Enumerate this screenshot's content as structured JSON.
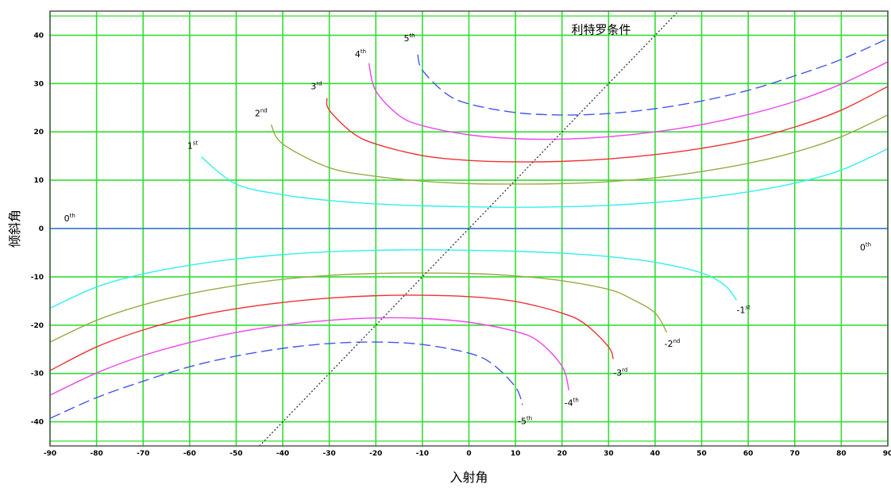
{
  "chart_data": {
    "type": "line",
    "title": "",
    "xlabel": "入射角",
    "ylabel": "倾斜角",
    "xlim": [
      -90,
      90
    ],
    "ylim": [
      -45,
      45
    ],
    "x_ticks": [
      -90,
      -80,
      -70,
      -60,
      -50,
      -40,
      -30,
      -20,
      -10,
      0,
      10,
      20,
      30,
      40,
      50,
      60,
      70,
      80,
      90
    ],
    "y_ticks": [
      -40,
      -30,
      -20,
      -10,
      0,
      10,
      20,
      30,
      40
    ],
    "grid": true,
    "colors": {
      "grid": "#33dd33",
      "frame": "#555555",
      "order0": "#3355ff",
      "order1": "#33eeee",
      "order2": "#99aa44",
      "order3": "#ee3333",
      "order4": "#ee44ee",
      "order5": "#4455ee",
      "littrow": "#333333"
    },
    "series": [
      {
        "name": "0th",
        "color_key": "order0",
        "dash": false,
        "x": [
          -90,
          90
        ],
        "y": [
          0,
          0
        ]
      },
      {
        "name": "1st",
        "color_key": "order1",
        "dash": false,
        "x": [
          -57.5,
          -50,
          -40,
          -30,
          -20,
          -10,
          0,
          10,
          20,
          30,
          40,
          50,
          60,
          70,
          80,
          90
        ],
        "y": [
          14.8,
          9.2,
          7.0,
          5.8,
          5.1,
          4.7,
          4.5,
          4.4,
          4.5,
          4.8,
          5.4,
          6.3,
          7.6,
          9.4,
          12.1,
          16.5
        ]
      },
      {
        "name": "2nd",
        "color_key": "order2",
        "dash": false,
        "x": [
          -42.5,
          -40,
          -30,
          -20,
          -10,
          0,
          10,
          20,
          30,
          40,
          50,
          60,
          70,
          80,
          90
        ],
        "y": [
          21.5,
          17.5,
          12.6,
          10.8,
          9.8,
          9.3,
          9.2,
          9.3,
          9.7,
          10.5,
          11.8,
          13.5,
          15.8,
          19.0,
          23.5
        ]
      },
      {
        "name": "3rd",
        "color_key": "order3",
        "dash": false,
        "x": [
          -30.5,
          -30,
          -25,
          -20,
          -10,
          0,
          10,
          20,
          30,
          40,
          50,
          60,
          70,
          80,
          90
        ],
        "y": [
          27.0,
          24.5,
          19.8,
          17.5,
          15.1,
          14.1,
          13.8,
          13.9,
          14.4,
          15.3,
          16.6,
          18.4,
          21.0,
          24.5,
          29.4
        ]
      },
      {
        "name": "4th",
        "color_key": "order4",
        "dash": false,
        "x": [
          -21.5,
          -20,
          -15,
          -10,
          0,
          10,
          20,
          30,
          40,
          50,
          60,
          70,
          80,
          90
        ],
        "y": [
          34.2,
          28.5,
          23.4,
          21.3,
          19.4,
          18.6,
          18.5,
          19.0,
          20.0,
          21.5,
          23.6,
          26.3,
          29.9,
          34.5
        ]
      },
      {
        "name": "5th",
        "color_key": "order5",
        "dash": true,
        "x": [
          -11,
          -10,
          -5,
          0,
          10,
          20,
          30,
          40,
          50,
          60,
          70,
          80,
          90
        ],
        "y": [
          36.0,
          32.8,
          28.0,
          25.8,
          24.0,
          23.5,
          23.8,
          24.8,
          26.4,
          28.6,
          31.6,
          35.0,
          39.3
        ]
      },
      {
        "name": "-1st",
        "color_key": "order1",
        "dash": false,
        "x": [
          -90,
          -80,
          -70,
          -60,
          -50,
          -40,
          -30,
          -20,
          -10,
          0,
          10,
          20,
          30,
          40,
          50,
          55,
          57.5
        ],
        "y": [
          -16.5,
          -12.1,
          -9.4,
          -7.6,
          -6.3,
          -5.4,
          -4.8,
          -4.5,
          -4.4,
          -4.5,
          -4.7,
          -5.1,
          -5.8,
          -7.0,
          -9.2,
          -11.8,
          -14.8
        ]
      },
      {
        "name": "-2nd",
        "color_key": "order2",
        "dash": false,
        "x": [
          -90,
          -80,
          -70,
          -60,
          -50,
          -40,
          -30,
          -20,
          -10,
          0,
          10,
          20,
          30,
          35,
          40,
          42.5
        ],
        "y": [
          -23.5,
          -19.0,
          -15.8,
          -13.5,
          -11.8,
          -10.5,
          -9.7,
          -9.3,
          -9.2,
          -9.3,
          -9.8,
          -10.8,
          -12.6,
          -14.6,
          -17.5,
          -21.5
        ]
      },
      {
        "name": "-3rd",
        "color_key": "order3",
        "dash": false,
        "x": [
          -90,
          -80,
          -70,
          -60,
          -50,
          -40,
          -30,
          -20,
          -10,
          0,
          10,
          20,
          25,
          30,
          31
        ],
        "y": [
          -29.4,
          -24.5,
          -21.0,
          -18.4,
          -16.6,
          -15.3,
          -14.4,
          -13.9,
          -13.8,
          -14.1,
          -15.1,
          -17.5,
          -19.8,
          -24.5,
          -27.0
        ]
      },
      {
        "name": "-4th",
        "color_key": "order4",
        "dash": false,
        "x": [
          -90,
          -80,
          -70,
          -60,
          -50,
          -40,
          -30,
          -20,
          -10,
          0,
          10,
          15,
          20,
          21.5
        ],
        "y": [
          -34.5,
          -29.9,
          -26.3,
          -23.6,
          -21.5,
          -20.0,
          -19.0,
          -18.5,
          -18.6,
          -19.4,
          -21.3,
          -23.4,
          -28.5,
          -33.5
        ]
      },
      {
        "name": "-5th",
        "color_key": "order5",
        "dash": true,
        "x": [
          -90,
          -80,
          -70,
          -60,
          -50,
          -40,
          -30,
          -20,
          -10,
          0,
          5,
          10,
          11.5
        ],
        "y": [
          -39.3,
          -35.0,
          -31.6,
          -28.6,
          -26.4,
          -24.8,
          -23.8,
          -23.5,
          -24.0,
          -25.8,
          -28.0,
          -32.8,
          -36.5
        ]
      }
    ],
    "littrow": {
      "label": "利特罗条件",
      "x": [
        -45,
        45
      ],
      "y": [
        -45,
        45
      ]
    },
    "annotations": [
      {
        "text": "0",
        "sup": "th",
        "x": -87,
        "y": 1.5
      },
      {
        "text": "0",
        "sup": "th",
        "x": 84,
        "y": -4.5
      },
      {
        "text": "1",
        "sup": "st",
        "x": -60.5,
        "y": 16.5
      },
      {
        "text": "2",
        "sup": "nd",
        "x": -46,
        "y": 23.2
      },
      {
        "text": "3",
        "sup": "rd",
        "x": -34,
        "y": 28.8
      },
      {
        "text": "4",
        "sup": "th",
        "x": -24.5,
        "y": 35.5
      },
      {
        "text": "5",
        "sup": "th",
        "x": -14,
        "y": 38.8
      },
      {
        "text": "-1",
        "sup": "st",
        "x": 57.5,
        "y": -17.5
      },
      {
        "text": "-2",
        "sup": "nd",
        "x": 42,
        "y": -24.5
      },
      {
        "text": "-3",
        "sup": "rd",
        "x": 31,
        "y": -30.5
      },
      {
        "text": "-4",
        "sup": "th",
        "x": 20.5,
        "y": -36.7
      },
      {
        "text": "-5",
        "sup": "th",
        "x": 10.5,
        "y": -40.5
      }
    ]
  }
}
